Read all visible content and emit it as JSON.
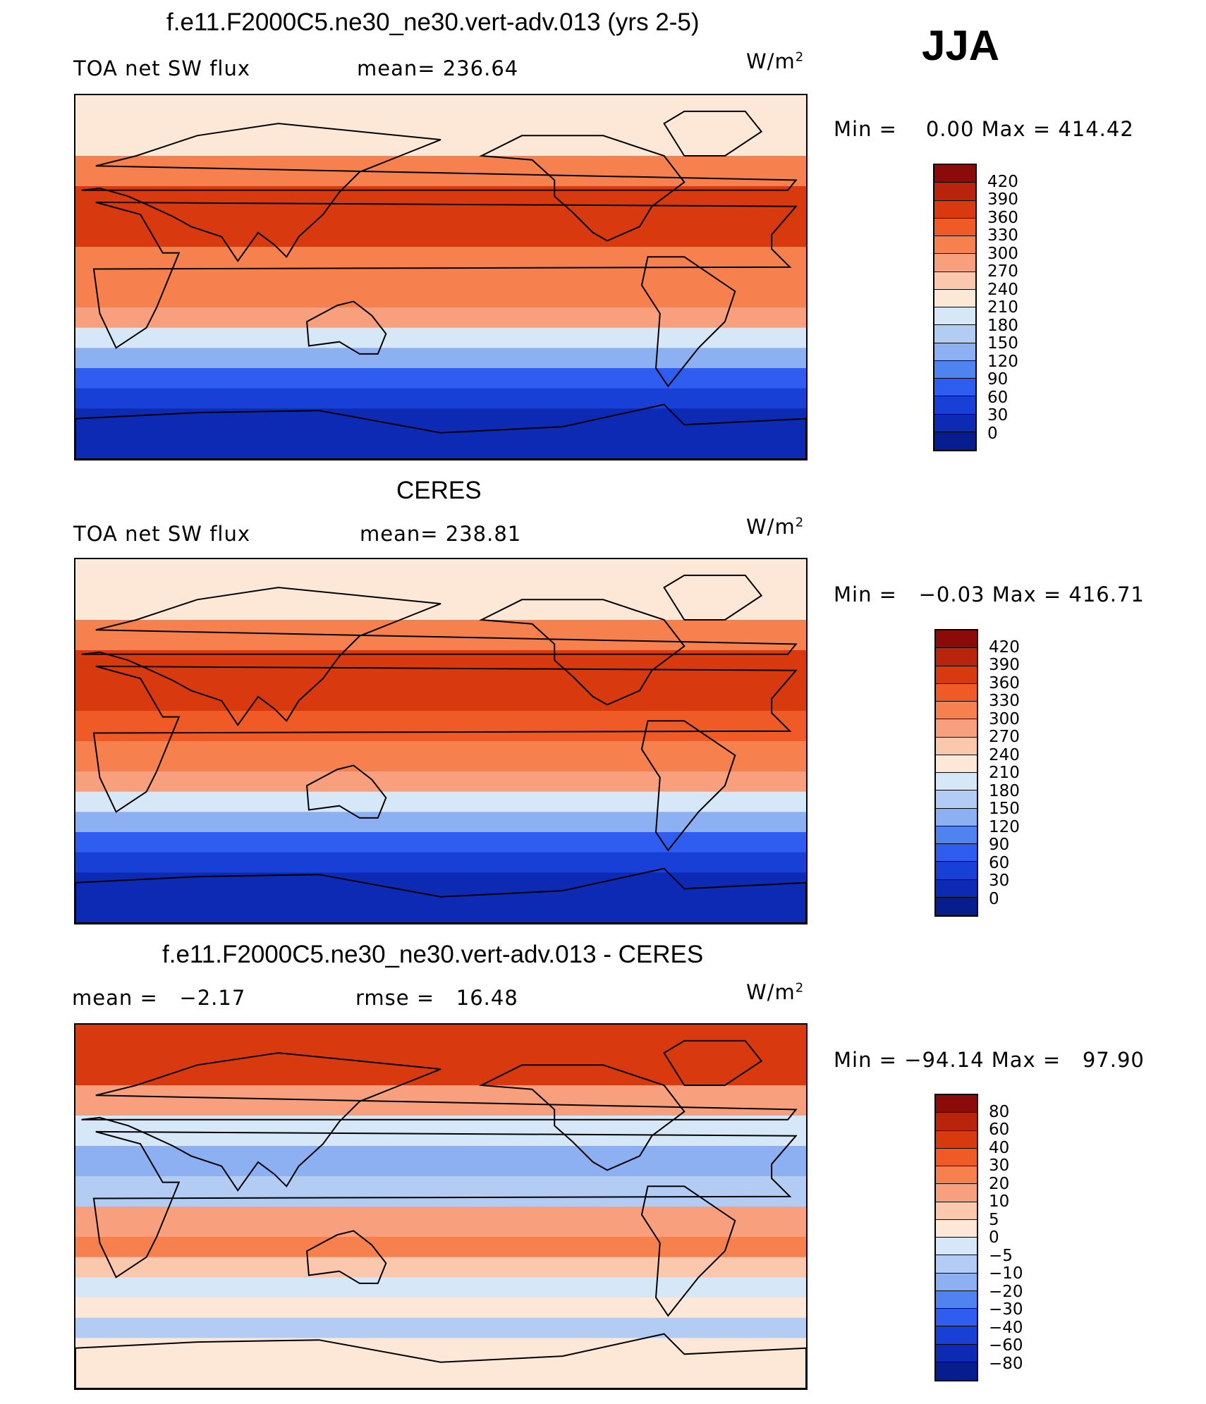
{
  "season": "JJA",
  "chart_data": [
    {
      "type": "heatmap",
      "title": "f.e11.F2000C5.ne30_ne30.vert-adv.013 (yrs 2-5)",
      "variable": "TOA net SW flux",
      "stat_text": "mean= 236.64",
      "units": "W/m",
      "units_exp": "2",
      "minmax_text": "Min =    0.00 Max = 414.42",
      "colorbar": {
        "levels": [
          "420",
          "390",
          "360",
          "330",
          "300",
          "270",
          "240",
          "210",
          "180",
          "150",
          "120",
          "90",
          "60",
          "30",
          "0"
        ],
        "colors": [
          "#8b0a0a",
          "#b8240c",
          "#d9390e",
          "#ef5a26",
          "#f6814f",
          "#f8a07d",
          "#fbc7ad",
          "#fde8d7",
          "#d6e7f7",
          "#b2ccf3",
          "#8cb0f1",
          "#4f84f0",
          "#2f5df0",
          "#1840d6",
          "#0c2ab4",
          "#071d8e"
        ]
      },
      "zones": [
        {
          "lat_range": [
            60,
            90
          ],
          "value": 220
        },
        {
          "lat_range": [
            45,
            60
          ],
          "value": 300
        },
        {
          "lat_range": [
            30,
            45
          ],
          "value": 370
        },
        {
          "lat_range": [
            15,
            30
          ],
          "value": 360
        },
        {
          "lat_range": [
            0,
            15
          ],
          "value": 310
        },
        {
          "lat_range": [
            -15,
            0
          ],
          "value": 300
        },
        {
          "lat_range": [
            -25,
            -15
          ],
          "value": 270
        },
        {
          "lat_range": [
            -35,
            -25
          ],
          "value": 200
        },
        {
          "lat_range": [
            -45,
            -35
          ],
          "value": 130
        },
        {
          "lat_range": [
            -55,
            -45
          ],
          "value": 70
        },
        {
          "lat_range": [
            -65,
            -55
          ],
          "value": 30
        },
        {
          "lat_range": [
            -90,
            -65
          ],
          "value": 0
        }
      ]
    },
    {
      "type": "heatmap",
      "title": "CERES",
      "variable": "TOA net SW flux",
      "stat_text": "mean= 238.81",
      "units": "W/m",
      "units_exp": "2",
      "minmax_text": "Min =   −0.03 Max = 416.71",
      "colorbar": {
        "levels": [
          "420",
          "390",
          "360",
          "330",
          "300",
          "270",
          "240",
          "210",
          "180",
          "150",
          "120",
          "90",
          "60",
          "30",
          "0"
        ],
        "colors": [
          "#8b0a0a",
          "#b8240c",
          "#d9390e",
          "#ef5a26",
          "#f6814f",
          "#f8a07d",
          "#fbc7ad",
          "#fde8d7",
          "#d6e7f7",
          "#b2ccf3",
          "#8cb0f1",
          "#4f84f0",
          "#2f5df0",
          "#1840d6",
          "#0c2ab4",
          "#071d8e"
        ]
      },
      "zones": [
        {
          "lat_range": [
            60,
            90
          ],
          "value": 230
        },
        {
          "lat_range": [
            45,
            60
          ],
          "value": 300
        },
        {
          "lat_range": [
            30,
            45
          ],
          "value": 370
        },
        {
          "lat_range": [
            15,
            30
          ],
          "value": 360
        },
        {
          "lat_range": [
            0,
            15
          ],
          "value": 330
        },
        {
          "lat_range": [
            -15,
            0
          ],
          "value": 320
        },
        {
          "lat_range": [
            -25,
            -15
          ],
          "value": 280
        },
        {
          "lat_range": [
            -35,
            -25
          ],
          "value": 200
        },
        {
          "lat_range": [
            -45,
            -35
          ],
          "value": 130
        },
        {
          "lat_range": [
            -55,
            -45
          ],
          "value": 70
        },
        {
          "lat_range": [
            -65,
            -55
          ],
          "value": 30
        },
        {
          "lat_range": [
            -90,
            -65
          ],
          "value": 0
        }
      ]
    },
    {
      "type": "heatmap",
      "title": "f.e11.F2000C5.ne30_ne30.vert-adv.013 - CERES",
      "variable": "mean =   −2.17",
      "stat_text": "rmse =   16.48",
      "units": "W/m",
      "units_exp": "2",
      "minmax_text": "Min = −94.14 Max =   97.90",
      "colorbar": {
        "levels": [
          "80",
          "60",
          "40",
          "30",
          "20",
          "10",
          "5",
          "0",
          "−5",
          "−10",
          "−20",
          "−30",
          "−40",
          "−60",
          "−80"
        ],
        "colors": [
          "#8b0a0a",
          "#b8240c",
          "#d9390e",
          "#ef5a26",
          "#f6814f",
          "#f8a07d",
          "#fbc7ad",
          "#fde8d7",
          "#d6e7f7",
          "#b2ccf3",
          "#8cb0f1",
          "#4f84f0",
          "#2f5df0",
          "#1840d6",
          "#0c2ab4",
          "#071d8e"
        ]
      },
      "zones": [
        {
          "lat_range": [
            60,
            90
          ],
          "value": 40
        },
        {
          "lat_range": [
            45,
            60
          ],
          "value": 10
        },
        {
          "lat_range": [
            30,
            45
          ],
          "value": -5
        },
        {
          "lat_range": [
            15,
            30
          ],
          "value": -20
        },
        {
          "lat_range": [
            0,
            15
          ],
          "value": -10
        },
        {
          "lat_range": [
            -15,
            0
          ],
          "value": 10
        },
        {
          "lat_range": [
            -25,
            -15
          ],
          "value": 20
        },
        {
          "lat_range": [
            -35,
            -25
          ],
          "value": 5
        },
        {
          "lat_range": [
            -45,
            -35
          ],
          "value": -5
        },
        {
          "lat_range": [
            -55,
            -45
          ],
          "value": 3
        },
        {
          "lat_range": [
            -65,
            -55
          ],
          "value": -10
        },
        {
          "lat_range": [
            -90,
            -65
          ],
          "value": 3
        }
      ]
    }
  ]
}
